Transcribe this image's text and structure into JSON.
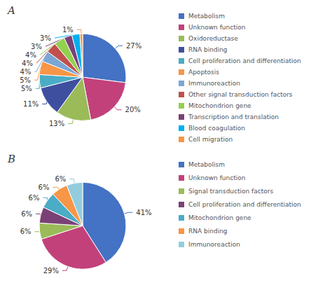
{
  "chart_data": [
    {
      "type": "pie",
      "title": "A",
      "categories": [
        "Metabolism",
        "Unknown function",
        "Oxidoreductase",
        "RNA binding",
        "Cell proliferation and differentiation",
        "Apoptosis",
        "Immunoreaction",
        "Other signal transduction factors",
        "Mitochondrion gene",
        "Transcription and translation",
        "Blood coagulation",
        "Cell migration"
      ],
      "values": [
        27,
        20,
        13,
        11,
        5,
        5,
        4,
        4,
        4,
        3,
        3,
        1
      ],
      "value_labels": [
        "27%",
        "20%",
        "13%",
        "11%",
        "5%",
        "5%",
        "4%",
        "4%",
        "4%",
        "3%",
        "3%",
        "1%"
      ],
      "colors": [
        "#4472C4",
        "#C2417A",
        "#9BBB59",
        "#3F4FA0",
        "#4BACC6",
        "#F79646",
        "#7AA7D4",
        "#C0504D",
        "#92D050",
        "#7B4177",
        "#00B0F0",
        "#F79646"
      ],
      "data_labels": true,
      "legend": "right"
    },
    {
      "type": "pie",
      "title": "B",
      "categories": [
        "Metabolism",
        "Unknown function",
        "Signal transduction factors",
        "Cell proliferation and differentiation",
        "Mitochondrion gene",
        "RNA binding",
        "Immunoreaction"
      ],
      "values": [
        41,
        29,
        6,
        6,
        6,
        6,
        6
      ],
      "value_labels": [
        "41%",
        "29%",
        "6%",
        "6%",
        "6%",
        "6%",
        "6%"
      ],
      "colors": [
        "#4472C4",
        "#C2417A",
        "#9BBB59",
        "#7B4177",
        "#4BACC6",
        "#F79646",
        "#93CDDD"
      ],
      "data_labels": true,
      "legend": "right"
    }
  ]
}
